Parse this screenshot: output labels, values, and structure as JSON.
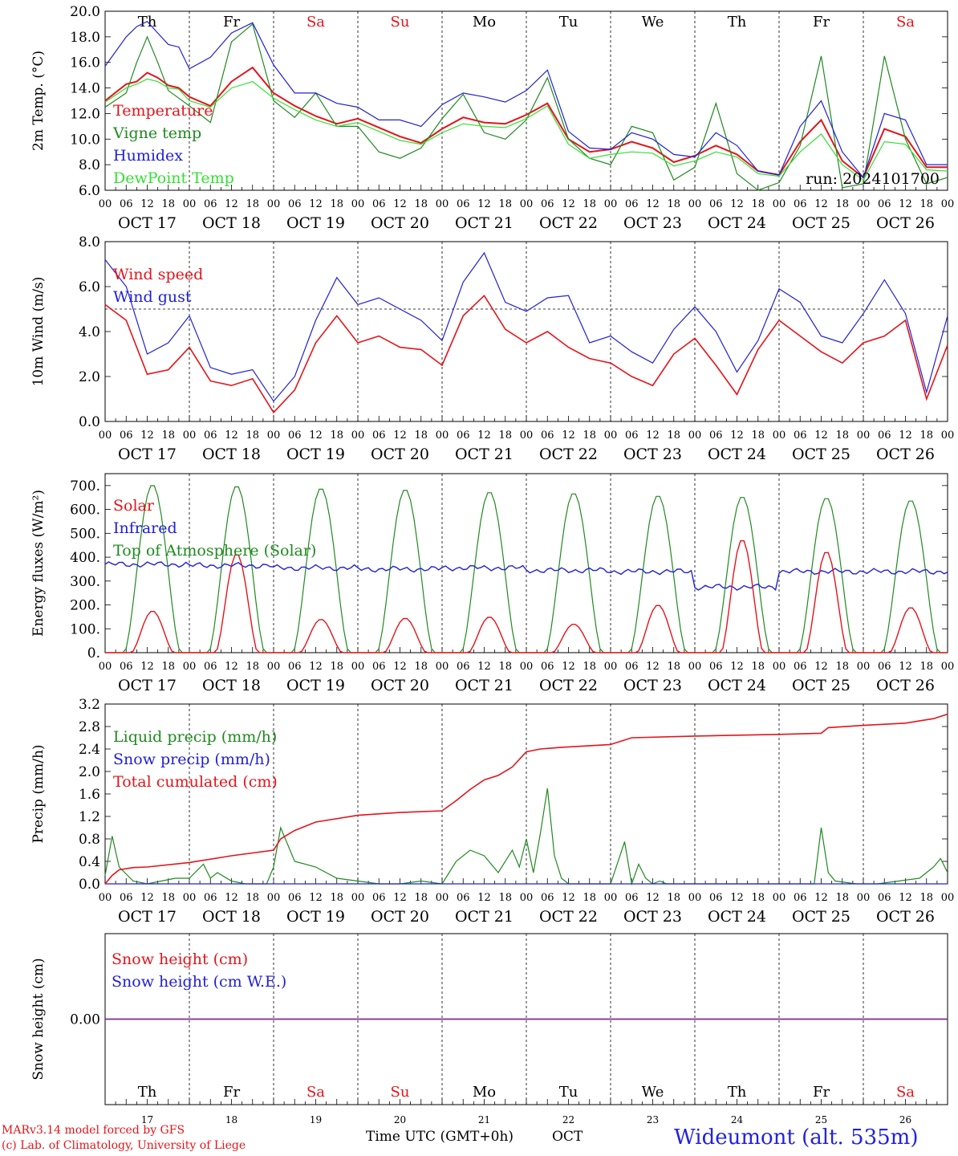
{
  "colors": {
    "red": "#e4141a",
    "green": "#1f8a1f",
    "blue": "#2020d8",
    "lightgreen": "#33e033",
    "purple": "#7a2a8a",
    "weekend": "#e4141a"
  },
  "days": [
    {
      "abbr": "Th",
      "date": "OCT 17",
      "num": "17",
      "weekend": false
    },
    {
      "abbr": "Fr",
      "date": "OCT 18",
      "num": "18",
      "weekend": false
    },
    {
      "abbr": "Sa",
      "date": "OCT 19",
      "num": "19",
      "weekend": true
    },
    {
      "abbr": "Su",
      "date": "OCT 20",
      "num": "20",
      "weekend": true
    },
    {
      "abbr": "Mo",
      "date": "OCT 21",
      "num": "21",
      "weekend": false
    },
    {
      "abbr": "Tu",
      "date": "OCT 22",
      "num": "22",
      "weekend": false
    },
    {
      "abbr": "We",
      "date": "OCT 23",
      "num": "23",
      "weekend": false
    },
    {
      "abbr": "Th",
      "date": "OCT 24",
      "num": "24",
      "weekend": false
    },
    {
      "abbr": "Fr",
      "date": "OCT 25",
      "num": "25",
      "weekend": false
    },
    {
      "abbr": "Sa",
      "date": "OCT 26",
      "num": "26",
      "weekend": true
    }
  ],
  "hour_ticks": [
    "00",
    "06",
    "12",
    "18"
  ],
  "final_hour_tick": "00",
  "footer": {
    "credit_line1": "MARv3.14 model forced by GFS",
    "credit_line2": "(c) Lab. of Climatology, University of Liege",
    "time_label": "Time UTC (GMT+0h)",
    "month_label": "OCT",
    "station": "Wideumont (alt. 535m)"
  },
  "chart_data": [
    {
      "type": "line",
      "id": "temp",
      "ylabel": "2m Temp. (°C)",
      "ylim": [
        6,
        20
      ],
      "yticks": [
        6,
        8,
        10,
        12,
        14,
        16,
        18,
        20
      ],
      "ytick_labels": [
        "6.0",
        "8.0",
        "10.0",
        "12.0",
        "14.0",
        "16.0",
        "18.0",
        "20.0"
      ],
      "run_label": "run: 2024101700",
      "show_day_names": true,
      "hline": null,
      "x": [
        0,
        6,
        9,
        12,
        15,
        18,
        21,
        24,
        30,
        36,
        42,
        48,
        54,
        60,
        66,
        72,
        78,
        84,
        90,
        96,
        102,
        108,
        114,
        120,
        126,
        132,
        138,
        144,
        150,
        156,
        162,
        168,
        174,
        180,
        186,
        192,
        198,
        204,
        210,
        216,
        222,
        228,
        234,
        240
      ],
      "series": [
        {
          "name": "Temperature",
          "color": "#e4141a",
          "width": 2,
          "values": [
            13.0,
            14.3,
            14.5,
            15.2,
            14.8,
            14.2,
            14.0,
            13.3,
            12.6,
            14.5,
            15.6,
            13.6,
            12.6,
            11.8,
            11.2,
            11.6,
            10.9,
            10.2,
            9.7,
            10.8,
            11.7,
            11.3,
            11.2,
            11.9,
            12.8,
            10.0,
            9.0,
            9.2,
            9.8,
            9.3,
            8.2,
            8.7,
            9.5,
            8.8,
            7.5,
            7.2,
            9.8,
            11.5,
            8.3,
            7.0,
            10.8,
            10.2,
            7.8,
            7.8
          ]
        },
        {
          "name": "Vigne temp",
          "color": "#1f8a1f",
          "width": 1.2,
          "values": [
            12.5,
            13.6,
            16.0,
            18.0,
            16.0,
            13.8,
            13.2,
            12.6,
            11.3,
            17.6,
            19.0,
            13.0,
            11.7,
            13.6,
            11.0,
            11.0,
            9.0,
            8.5,
            9.3,
            11.6,
            13.5,
            10.5,
            10.0,
            11.5,
            14.8,
            10.0,
            8.5,
            8.0,
            11.0,
            10.5,
            6.8,
            7.8,
            12.8,
            7.3,
            6.0,
            6.6,
            9.5,
            16.5,
            6.2,
            6.5,
            16.5,
            10.0,
            6.5,
            7.0
          ]
        },
        {
          "name": "Humidex",
          "color": "#2020d8",
          "width": 1.2,
          "values": [
            15.7,
            18.0,
            18.8,
            19.2,
            18.3,
            17.4,
            17.2,
            15.5,
            16.4,
            18.3,
            19.1,
            15.8,
            13.6,
            13.6,
            12.8,
            12.5,
            11.5,
            11.5,
            11.0,
            12.7,
            13.6,
            13.3,
            12.9,
            13.8,
            15.4,
            10.6,
            9.3,
            9.2,
            10.5,
            10.0,
            8.8,
            8.6,
            10.5,
            9.5,
            7.5,
            7.2,
            11.0,
            13.0,
            9.0,
            7.0,
            12.0,
            11.5,
            8.0,
            8.0
          ]
        },
        {
          "name": "DewPoint Temp",
          "color": "#33e033",
          "width": 1.2,
          "values": [
            12.9,
            14.0,
            14.3,
            14.7,
            14.5,
            14.0,
            13.9,
            13.0,
            12.5,
            14.0,
            14.5,
            13.2,
            12.3,
            11.5,
            11.0,
            11.3,
            10.6,
            9.9,
            9.6,
            10.5,
            11.2,
            11.0,
            10.9,
            11.6,
            12.6,
            9.6,
            8.5,
            8.8,
            9.0,
            8.9,
            7.9,
            8.3,
            9.0,
            8.6,
            7.3,
            7.1,
            9.0,
            10.4,
            8.0,
            6.8,
            9.8,
            9.6,
            7.6,
            7.5
          ]
        }
      ]
    },
    {
      "type": "line",
      "id": "wind",
      "ylabel": "10m Wind (m/s)",
      "ylim": [
        0,
        8
      ],
      "yticks": [
        0,
        2,
        4,
        6,
        8
      ],
      "ytick_labels": [
        "0.0",
        "2.0",
        "4.0",
        "6.0",
        "8.0"
      ],
      "run_label": "",
      "show_day_names": false,
      "hline": 5,
      "x": [
        0,
        6,
        12,
        18,
        24,
        30,
        36,
        42,
        48,
        54,
        60,
        66,
        72,
        78,
        84,
        90,
        96,
        102,
        108,
        114,
        120,
        126,
        132,
        138,
        144,
        150,
        156,
        162,
        168,
        174,
        180,
        186,
        192,
        198,
        204,
        210,
        216,
        222,
        228,
        234,
        240
      ],
      "series": [
        {
          "name": "Wind speed",
          "color": "#e4141a",
          "width": 1.6,
          "values": [
            5.2,
            4.5,
            2.1,
            2.3,
            3.3,
            1.8,
            1.6,
            1.9,
            0.4,
            1.4,
            3.5,
            4.7,
            3.5,
            3.8,
            3.3,
            3.2,
            2.5,
            4.7,
            5.6,
            4.1,
            3.5,
            4.0,
            3.3,
            2.8,
            2.6,
            2.0,
            1.6,
            3.0,
            3.7,
            2.5,
            1.2,
            3.2,
            4.5,
            3.8,
            3.1,
            2.6,
            3.5,
            3.8,
            4.5,
            1.0,
            3.4
          ]
        },
        {
          "name": "Wind gust",
          "color": "#2020d8",
          "width": 1.2,
          "values": [
            7.2,
            6.0,
            3.0,
            3.5,
            4.7,
            2.4,
            2.1,
            2.3,
            0.9,
            2.0,
            4.5,
            6.4,
            5.2,
            5.5,
            5.0,
            4.5,
            3.6,
            6.2,
            7.5,
            5.3,
            4.9,
            5.5,
            5.6,
            3.5,
            3.8,
            3.1,
            2.6,
            4.1,
            5.1,
            4.0,
            2.2,
            3.6,
            5.9,
            5.3,
            3.8,
            3.5,
            4.8,
            6.3,
            4.8,
            1.3,
            4.7
          ]
        }
      ]
    },
    {
      "type": "line",
      "id": "energy",
      "ylabel": "Energy fluxes (W/m²)",
      "ylim": [
        0,
        750
      ],
      "yticks": [
        0,
        100,
        200,
        300,
        400,
        500,
        600,
        700
      ],
      "ytick_labels": [
        "0.",
        "100.",
        "200.",
        "300.",
        "400.",
        "500.",
        "600.",
        "700."
      ],
      "run_label": "",
      "show_day_names": false,
      "hline": null,
      "solar_peak_hours": [
        13.5,
        37.5,
        61.5,
        85.5,
        109.5,
        133.5,
        157.5,
        181.5,
        205.5,
        229.5
      ],
      "series": [
        {
          "name": "Solar",
          "color": "#e4141a",
          "width": 1.4,
          "daily_peaks": [
            175,
            415,
            140,
            145,
            150,
            120,
            200,
            475,
            425,
            190
          ]
        },
        {
          "name": "Infrared",
          "color": "#2020d8",
          "width": 1.4,
          "daily_mean": [
            370,
            365,
            355,
            350,
            355,
            345,
            340,
            275,
            340,
            340
          ]
        },
        {
          "name": "Top of Atmosphere (Solar)",
          "color": "#1f8a1f",
          "width": 1.2,
          "daily_peaks": [
            705,
            700,
            690,
            685,
            675,
            670,
            660,
            655,
            650,
            640
          ]
        }
      ]
    },
    {
      "type": "line",
      "id": "precip",
      "ylabel": "Precip (mm/h)",
      "ylim": [
        0,
        3.2
      ],
      "yticks": [
        0,
        0.4,
        0.8,
        1.2,
        1.6,
        2.0,
        2.4,
        2.8,
        3.2
      ],
      "ytick_labels": [
        "0.0",
        "0.4",
        "0.8",
        "1.2",
        "1.6",
        "2.0",
        "2.4",
        "2.8",
        "3.2"
      ],
      "run_label": "",
      "show_day_names": false,
      "hline": null,
      "series": [
        {
          "name": "Liquid precip (mm/h)",
          "color": "#1f8a1f",
          "width": 1.2,
          "x": [
            0,
            2,
            4,
            8,
            12,
            16,
            20,
            24,
            28,
            30,
            32,
            36,
            40,
            46,
            48,
            50,
            54,
            60,
            66,
            72,
            78,
            84,
            90,
            96,
            100,
            104,
            108,
            112,
            116,
            118,
            120,
            122,
            124,
            126,
            128,
            130,
            132,
            134,
            136,
            140,
            144,
            148,
            150,
            152,
            154,
            156,
            158,
            160,
            166,
            172,
            178,
            184,
            190,
            196,
            200,
            202,
            204,
            206,
            208,
            214,
            220,
            226,
            232,
            236,
            238,
            240
          ],
          "values": [
            0.15,
            0.85,
            0.3,
            0.05,
            0.0,
            0.05,
            0.1,
            0.1,
            0.35,
            0.1,
            0.2,
            0.05,
            0.0,
            0.0,
            0.3,
            1.0,
            0.4,
            0.3,
            0.1,
            0.05,
            0.0,
            0.0,
            0.05,
            0.0,
            0.4,
            0.6,
            0.5,
            0.2,
            0.6,
            0.3,
            0.8,
            0.2,
            0.9,
            1.7,
            0.5,
            0.1,
            0.0,
            0.0,
            0.0,
            0.0,
            0.0,
            0.75,
            0.0,
            0.35,
            0.1,
            0.0,
            0.05,
            0.0,
            0.0,
            0.0,
            0.0,
            0.0,
            0.0,
            0.0,
            0.0,
            0.0,
            1.0,
            0.2,
            0.05,
            0.0,
            0.0,
            0.05,
            0.1,
            0.3,
            0.45,
            0.2
          ]
        },
        {
          "name": "Snow precip (mm/h)",
          "color": "#2020d8",
          "width": 1.2,
          "x": [
            0,
            240
          ],
          "values": [
            0,
            0
          ]
        },
        {
          "name": "Total cumulated (cm)",
          "color": "#e4141a",
          "width": 1.6,
          "x": [
            0,
            2,
            4,
            8,
            12,
            24,
            36,
            48,
            50,
            54,
            60,
            72,
            84,
            96,
            100,
            104,
            108,
            112,
            116,
            120,
            124,
            126,
            130,
            144,
            150,
            168,
            192,
            204,
            206,
            216,
            228,
            236,
            240
          ],
          "values": [
            0.0,
            0.15,
            0.25,
            0.29,
            0.3,
            0.38,
            0.5,
            0.6,
            0.8,
            0.95,
            1.1,
            1.22,
            1.27,
            1.3,
            1.48,
            1.68,
            1.85,
            1.93,
            2.08,
            2.35,
            2.4,
            2.41,
            2.43,
            2.48,
            2.6,
            2.63,
            2.66,
            2.68,
            2.78,
            2.82,
            2.86,
            2.94,
            3.02
          ]
        }
      ]
    },
    {
      "type": "line",
      "id": "snow",
      "ylabel": "Snow height (cm)",
      "ylim": [
        -1,
        1
      ],
      "yticks": [
        0
      ],
      "ytick_labels": [
        "0.00"
      ],
      "run_label": "",
      "show_day_names": true,
      "hline": null,
      "series": [
        {
          "name": "Snow height (cm)",
          "color": "#e4141a",
          "width": 1.2,
          "x": [
            0,
            240
          ],
          "values": [
            0,
            0
          ]
        },
        {
          "name": "Snow height (cm W.E.)",
          "color": "#2020d8",
          "width": 1.2,
          "x": [
            0,
            240
          ],
          "values": [
            0,
            0
          ]
        }
      ]
    }
  ]
}
